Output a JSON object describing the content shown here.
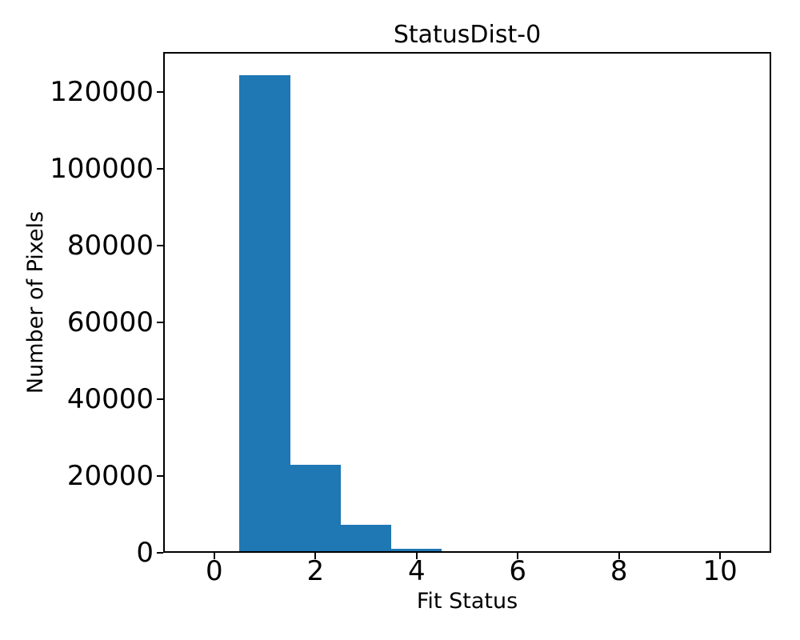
{
  "chart_data": {
    "type": "bar",
    "subtype": "histogram",
    "title": "StatusDist-0",
    "xlabel": "Fit Status",
    "ylabel": "Number of Pixels",
    "bin_centers": [
      0,
      1,
      2,
      3,
      4,
      5,
      6,
      7,
      8,
      9,
      10
    ],
    "values": [
      0,
      124000,
      22500,
      6900,
      700,
      0,
      0,
      0,
      0,
      0,
      0
    ],
    "bar_width": 1,
    "bar_color": "#1f77b4",
    "text_color": "#000000",
    "xlim": [
      -1.01,
      11.01
    ],
    "ylim": [
      0,
      130400
    ],
    "xticks": [
      0,
      2,
      4,
      6,
      8,
      10
    ],
    "yticks": [
      0,
      20000,
      40000,
      60000,
      80000,
      100000,
      120000
    ],
    "legend": null,
    "grid": false
  }
}
